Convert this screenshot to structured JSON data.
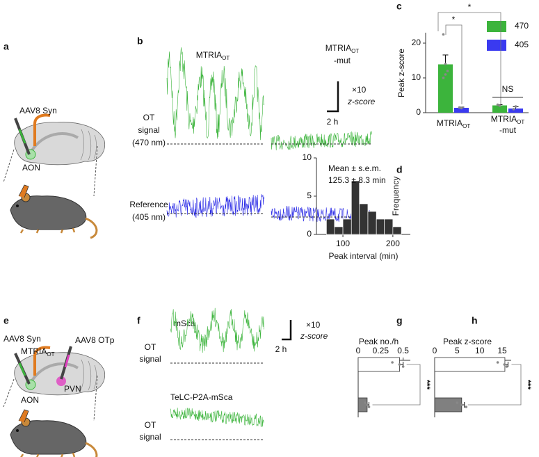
{
  "figure": {
    "panel_labels": [
      "a",
      "b",
      "c",
      "d",
      "e",
      "f",
      "g",
      "h"
    ],
    "a": {
      "virus": "AAV8 Syn",
      "region": "AON"
    },
    "b": {
      "title_main": {
        "text": "MTRIA",
        "sub": "OT"
      },
      "title_mut": {
        "text": "MTRIA",
        "sub": "OT",
        "suffix": "-mut"
      },
      "scale": [
        "×10",
        "z-score",
        "2 h"
      ],
      "ot_label": [
        "OT",
        "signal",
        "(470 nm)"
      ],
      "ref_label": [
        "Reference",
        "(405 nm)"
      ]
    },
    "e": {
      "virus": "AAV8 Syn",
      "construct": {
        "text": "MTRIA",
        "sub": "OT"
      },
      "virus2": "AAV8 OTp",
      "region": "PVN",
      "region2": "AON"
    },
    "f": {
      "cond1": "mSca",
      "cond2": "TeLC-P2A-mSca",
      "signal": [
        "OT",
        "signal"
      ],
      "scale": [
        "×10",
        "z-score",
        "2 h"
      ]
    }
  },
  "chart_data": [
    {
      "type": "bar",
      "ylabel": "Peak z-score",
      "categories": [
        {
          "text": "MTRIA",
          "sub": "OT"
        },
        {
          "text": "MTRIA",
          "sub": "OT",
          "suffix": "-mut"
        }
      ],
      "ylim": [
        0,
        23
      ],
      "yticks": [
        0,
        10,
        20
      ],
      "legend": "upper right",
      "series": [
        {
          "name": "470",
          "color": "#3cb43c",
          "values": [
            13.9,
            2.1
          ],
          "errors": [
            2.7,
            0.2
          ],
          "points": [
            [
              22.5,
              14,
              12,
              10,
              11
            ],
            [
              2.3,
              2.0
            ]
          ]
        },
        {
          "name": "405",
          "color": "#3a3af0",
          "values": [
            1.4,
            1.2
          ],
          "errors": [
            0.2,
            0.5
          ],
          "points": [
            [
              1.5,
              1.3
            ],
            [
              1.0,
              1.8
            ]
          ]
        }
      ],
      "annotations": [
        "*",
        "*",
        "NS"
      ]
    },
    {
      "type": "histogram",
      "xlabel": "Peak interval (min)",
      "ylabel": "Frequency",
      "color": "#333333",
      "bins": [
        67,
        83,
        100,
        117,
        133,
        150,
        167,
        183,
        200,
        217
      ],
      "values": [
        2,
        1,
        2,
        7,
        4,
        3,
        2,
        2,
        1
      ],
      "xlim": [
        47,
        235
      ],
      "xticks": [
        100,
        200
      ],
      "ylim": [
        0,
        10
      ],
      "yticks": [
        0,
        5,
        10
      ],
      "annotations": [
        "Mean ± s.e.m.",
        "125.3 ± 8.3 min"
      ]
    },
    {
      "type": "hbar",
      "title": "Peak no./h",
      "categories": [
        null,
        null
      ],
      "values": [
        0.46,
        0.1
      ],
      "errors": [
        0.04,
        0.02
      ],
      "colors": [
        "#ffffff",
        "#808080"
      ],
      "points": [
        [
          0.38,
          0.46,
          0.5
        ],
        [
          0.08,
          0.1,
          0.12
        ]
      ],
      "xlim": [
        0,
        0.58
      ],
      "xticks": [
        0,
        0.25,
        0.5
      ],
      "annotations": [
        "***"
      ]
    },
    {
      "type": "hbar",
      "title": "Peak z-score",
      "categories": [
        null,
        null
      ],
      "values": [
        15.6,
        6.0
      ],
      "errors": [
        0.7,
        0.6
      ],
      "colors": [
        "#ffffff",
        "#808080"
      ],
      "points": [
        [
          14,
          15.5,
          16
        ],
        [
          5,
          6,
          7
        ]
      ],
      "xlim": [
        0,
        17
      ],
      "xticks": [
        0,
        5,
        10,
        15
      ],
      "annotations": [
        "***"
      ]
    }
  ]
}
